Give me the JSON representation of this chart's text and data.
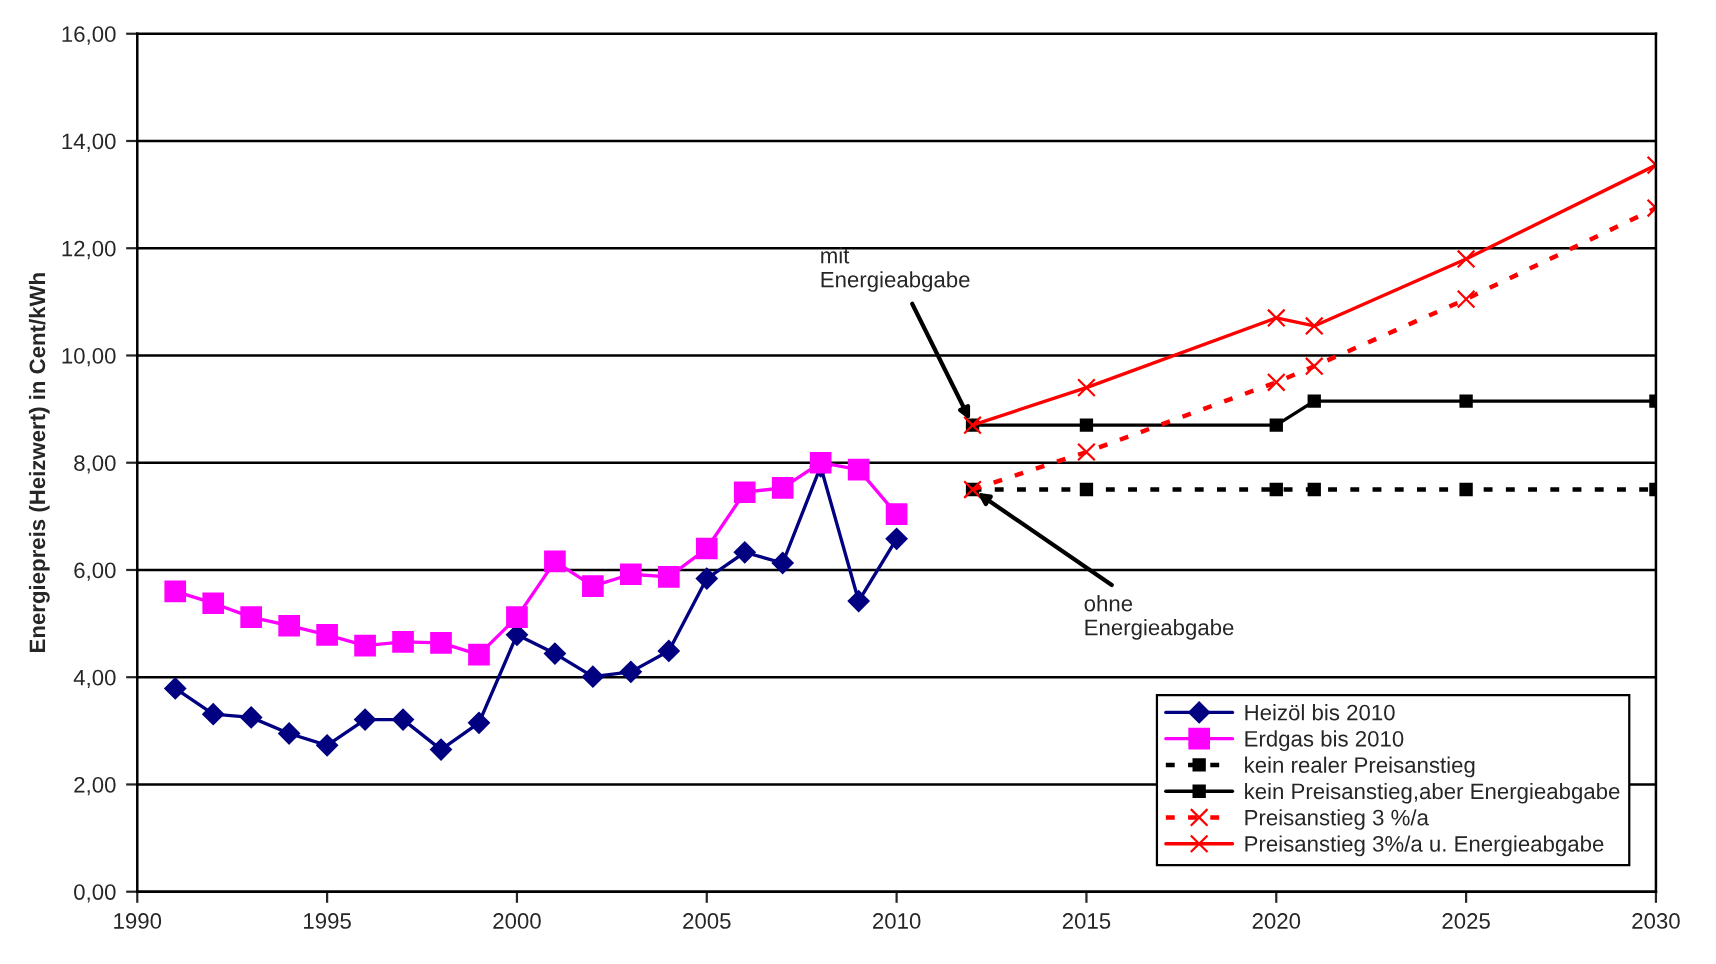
{
  "chart_data": {
    "type": "line",
    "ylabel": "Energiepreis (Heizwert) in Cent/kWh",
    "xlim": [
      1990,
      2030
    ],
    "xticks": [
      1990,
      1995,
      2000,
      2005,
      2010,
      2015,
      2020,
      2025,
      2030
    ],
    "ylim": [
      0,
      16
    ],
    "yticks": [
      {
        "value": 0,
        "label": "0,00"
      },
      {
        "value": 2,
        "label": "2,00"
      },
      {
        "value": 4,
        "label": "4,00"
      },
      {
        "value": 6,
        "label": "6,00"
      },
      {
        "value": 8,
        "label": "8,00"
      },
      {
        "value": 10,
        "label": "10,00"
      },
      {
        "value": 12,
        "label": "12,00"
      },
      {
        "value": 14,
        "label": "14,00"
      },
      {
        "value": 16,
        "label": "16,00"
      }
    ],
    "grid": "y",
    "legend": "bottom right",
    "series": [
      {
        "name": "Heizöl bis 2010",
        "color": "#000080",
        "marker": "diamond",
        "line_style": "solid",
        "x": [
          1991,
          1992,
          1993,
          1994,
          1995,
          1996,
          1997,
          1998,
          1999,
          2000,
          2001,
          2002,
          2003,
          2004,
          2005,
          2006,
          2007,
          2008,
          2009,
          2010
        ],
        "values": [
          3.79,
          3.31,
          3.25,
          2.95,
          2.73,
          3.21,
          3.21,
          2.65,
          3.15,
          4.79,
          4.44,
          4.01,
          4.1,
          4.49,
          5.84,
          6.33,
          6.13,
          7.93,
          5.42,
          6.58
        ]
      },
      {
        "name": "Erdgas bis 2010",
        "color": "#ff00ff",
        "marker": "square",
        "line_style": "solid",
        "x": [
          1991,
          1992,
          1993,
          1994,
          1995,
          1996,
          1997,
          1998,
          1999,
          2000,
          2001,
          2002,
          2003,
          2004,
          2005,
          2006,
          2007,
          2008,
          2009,
          2010
        ],
        "values": [
          5.6,
          5.38,
          5.12,
          4.96,
          4.79,
          4.59,
          4.66,
          4.64,
          4.42,
          5.12,
          6.16,
          5.7,
          5.92,
          5.87,
          6.4,
          7.45,
          7.53,
          8.0,
          7.87,
          7.04
        ]
      },
      {
        "name": "kein realer Preisanstieg",
        "color": "#000000",
        "marker": "square",
        "line_style": "dotted",
        "x": [
          2012,
          2015,
          2020,
          2021,
          2025,
          2030
        ],
        "values": [
          7.5,
          7.5,
          7.5,
          7.5,
          7.5,
          7.5
        ]
      },
      {
        "name": "kein Preisanstieg,aber Energieabgabe",
        "color": "#000000",
        "marker": "square",
        "line_style": "solid",
        "x": [
          2012,
          2015,
          2020,
          2021,
          2025,
          2030
        ],
        "values": [
          8.7,
          8.7,
          8.7,
          9.15,
          9.15,
          9.15
        ]
      },
      {
        "name": "Preisanstieg 3 %/a",
        "color": "#ff0000",
        "marker": "cross",
        "line_style": "dotted",
        "x": [
          2012,
          2015,
          2020,
          2021,
          2025,
          2030
        ],
        "values": [
          7.5,
          8.2,
          9.5,
          9.8,
          11.05,
          12.75
        ]
      },
      {
        "name": "Preisanstieg 3%/a u. Energieabgabe",
        "color": "#ff0000",
        "marker": "cross",
        "line_style": "solid",
        "x": [
          2012,
          2015,
          2020,
          2021,
          2025,
          2030
        ],
        "values": [
          8.7,
          9.4,
          10.7,
          10.55,
          11.8,
          13.55
        ]
      }
    ],
    "annotations": [
      {
        "text": "mit\nEnergieabgabe",
        "x": 2012,
        "y": 8.7
      },
      {
        "text": "ohne\nEnergieabgabe",
        "x": 2012,
        "y": 7.5
      }
    ]
  }
}
